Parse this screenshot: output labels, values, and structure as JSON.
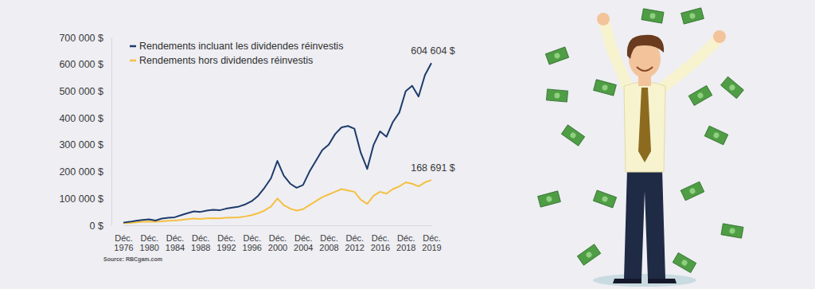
{
  "chart_data": {
    "type": "line",
    "categories": [
      "Déc. 1976",
      null,
      null,
      null,
      "Déc. 1980",
      null,
      null,
      null,
      "Déc. 1984",
      null,
      null,
      null,
      "Déc. 1988",
      null,
      null,
      null,
      "Déc. 1992",
      null,
      null,
      null,
      "Déc. 1996",
      null,
      null,
      null,
      "Déc. 2000",
      null,
      null,
      null,
      "Déc. 2004",
      null,
      null,
      null,
      "Déc. 2008",
      null,
      null,
      null,
      "Déc. 2012",
      null,
      null,
      null,
      "Déc. 2016",
      null,
      null,
      null,
      "Déc. 2018",
      null,
      null,
      null,
      "Déc. 2019"
    ],
    "series": [
      {
        "name": "Rendements incluant les dividendes réinvestis",
        "color": "#1d3b6b",
        "values": [
          10000,
          13000,
          17000,
          20000,
          22000,
          18000,
          25000,
          28000,
          30000,
          38000,
          45000,
          52000,
          50000,
          55000,
          58000,
          56000,
          62000,
          66000,
          70000,
          78000,
          90000,
          110000,
          140000,
          175000,
          240000,
          185000,
          155000,
          140000,
          150000,
          200000,
          240000,
          280000,
          300000,
          340000,
          365000,
          370000,
          360000,
          270000,
          210000,
          300000,
          350000,
          330000,
          385000,
          420000,
          500000,
          520000,
          480000,
          560000,
          604604
        ],
        "value_labels": [
          null,
          null,
          null,
          null,
          null,
          null,
          null,
          null,
          null,
          null,
          null,
          null,
          null,
          null,
          null,
          null,
          null,
          null,
          null,
          null,
          null,
          null,
          null,
          null,
          null,
          null,
          null,
          null,
          null,
          null,
          null,
          null,
          null,
          null,
          null,
          null,
          null,
          null,
          null,
          null,
          null,
          null,
          null,
          null,
          null,
          null,
          null,
          null,
          "604 604 $"
        ]
      },
      {
        "name": "Rendements hors dividendes réinvestis",
        "color": "#f5c040",
        "values": [
          8000,
          9000,
          11000,
          13000,
          14000,
          13000,
          15000,
          17000,
          18000,
          20000,
          23000,
          25000,
          24000,
          26000,
          27000,
          26000,
          28000,
          29000,
          30000,
          33000,
          38000,
          45000,
          55000,
          70000,
          100000,
          75000,
          62000,
          55000,
          60000,
          75000,
          90000,
          105000,
          115000,
          125000,
          135000,
          130000,
          125000,
          95000,
          80000,
          110000,
          125000,
          118000,
          135000,
          145000,
          160000,
          155000,
          145000,
          160000,
          168691
        ],
        "value_labels": [
          null,
          null,
          null,
          null,
          null,
          null,
          null,
          null,
          null,
          null,
          null,
          null,
          null,
          null,
          null,
          null,
          null,
          null,
          null,
          null,
          null,
          null,
          null,
          null,
          null,
          null,
          null,
          null,
          null,
          null,
          null,
          null,
          null,
          null,
          null,
          null,
          null,
          null,
          null,
          null,
          null,
          null,
          null,
          null,
          null,
          null,
          null,
          null,
          "168 691 $"
        ]
      }
    ],
    "ylim": [
      0,
      700000
    ],
    "yticks": [
      {
        "value": 0,
        "label": "0 $"
      },
      {
        "value": 100000,
        "label": "100 000 $"
      },
      {
        "value": 200000,
        "label": "200 000 $"
      },
      {
        "value": 300000,
        "label": "300 000 $"
      },
      {
        "value": 400000,
        "label": "400 000 $"
      },
      {
        "value": 500000,
        "label": "500 000 $"
      },
      {
        "value": 600000,
        "label": "600 000 $"
      },
      {
        "value": 700000,
        "label": "700 000 $"
      }
    ],
    "grid": false,
    "legend": "upper left",
    "data_labels": true,
    "source": "Source: RBCgam.com"
  }
}
